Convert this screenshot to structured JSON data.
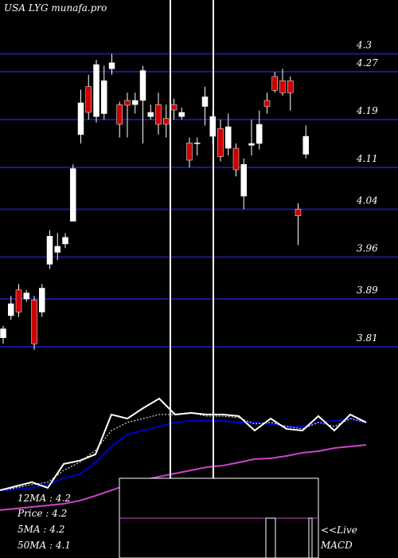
{
  "chart_data": {
    "type": "candlestick",
    "title": "USA LYG munafa.pro",
    "ylim": [
      3.75,
      4.39
    ],
    "yticks": [
      4.3,
      4.27,
      4.19,
      4.11,
      4.04,
      3.96,
      3.89,
      3.81
    ],
    "grid": true,
    "up_color": "#ffffff",
    "down_color": "#cc0000",
    "grid_color": "#1a1a8c",
    "open": [
      3.825,
      3.862,
      3.905,
      3.89,
      3.888,
      3.868,
      3.948,
      3.968,
      3.982,
      4.02,
      4.165,
      4.245,
      4.195,
      4.2,
      4.275,
      4.215,
      4.222,
      4.215,
      4.222,
      4.195,
      4.215,
      4.192,
      4.215,
      4.195,
      4.151,
      4.15,
      4.212,
      4.162,
      4.175,
      4.142,
      4.142,
      4.062,
      4.147,
      4.15,
      4.222,
      4.262,
      4.255,
      4.255,
      4.04,
      4.132
    ],
    "high": [
      3.845,
      3.895,
      3.915,
      3.905,
      3.895,
      3.915,
      4.005,
      4.0,
      4.0,
      4.115,
      4.24,
      4.265,
      4.29,
      4.28,
      4.3,
      4.22,
      4.235,
      4.235,
      4.28,
      4.215,
      4.235,
      4.215,
      4.225,
      4.21,
      4.16,
      4.16,
      4.245,
      4.205,
      4.19,
      4.2,
      4.15,
      4.125,
      4.19,
      4.205,
      4.235,
      4.27,
      4.275,
      4.262,
      4.05,
      4.18
    ],
    "low": [
      3.815,
      3.855,
      3.86,
      3.885,
      3.805,
      3.86,
      3.94,
      3.955,
      3.975,
      4.02,
      4.15,
      4.19,
      4.185,
      4.19,
      4.265,
      4.16,
      4.16,
      4.2,
      4.15,
      4.19,
      4.165,
      4.16,
      4.19,
      4.19,
      4.11,
      4.13,
      4.18,
      4.15,
      4.12,
      4.13,
      4.095,
      4.04,
      4.13,
      4.14,
      4.2,
      4.235,
      4.23,
      4.205,
      3.98,
      4.125
    ],
    "close": [
      3.84,
      3.882,
      3.868,
      3.9,
      3.815,
      3.908,
      3.995,
      3.978,
      3.993,
      4.108,
      4.218,
      4.202,
      4.282,
      4.255,
      4.285,
      4.182,
      4.214,
      4.222,
      4.272,
      4.202,
      4.182,
      4.182,
      4.206,
      4.202,
      4.122,
      4.151,
      4.228,
      4.195,
      4.128,
      4.178,
      4.106,
      4.115,
      4.15,
      4.182,
      4.212,
      4.239,
      4.235,
      4.235,
      4.029,
      4.162
    ],
    "lower_panel": {
      "ylim": [
        0,
        100
      ],
      "series": [
        {
          "color": "#cc44cc",
          "values": [
            27.3,
            28.2,
            29.1,
            30,
            30.9,
            32.7,
            35.5,
            38.6,
            41.8,
            44.5,
            46.4,
            48.2,
            50,
            51.8,
            52.7,
            54.5,
            56.4,
            56.8,
            58.2,
            60,
            60.9,
            62.7,
            63.6,
            64.5
          ]
        },
        {
          "color": "#0000cc",
          "values": [
            38.6,
            39.1,
            40,
            41.8,
            45.5,
            47.7,
            54.5,
            63.6,
            70.5,
            72.7,
            75,
            77.3,
            78.2,
            78.2,
            78.2,
            77.3,
            77.3,
            76.4,
            75,
            75,
            77.3,
            78.2,
            79.5,
            77.3
          ]
        },
        {
          "color": "#ffffff",
          "dashed": true,
          "values": [
            38.6,
            40,
            41.8,
            43.2,
            50,
            54.5,
            61.4,
            72.7,
            77.3,
            79.5,
            81.8,
            81.8,
            82.7,
            80.9,
            80.9,
            80,
            76.4,
            77.3,
            75,
            73.6,
            77.3,
            75,
            79.5,
            77.3
          ]
        },
        {
          "color": "#ffffff",
          "values": [
            38.6,
            40.9,
            43.2,
            40,
            53.6,
            55.5,
            59.1,
            81.8,
            79.5,
            85.5,
            90.9,
            81.8,
            82.7,
            81.8,
            81.8,
            80.9,
            72.7,
            79.5,
            73.6,
            72.7,
            80.9,
            72.7,
            81.8,
            77.3
          ]
        }
      ]
    },
    "info_labels": [
      "12MA : 4.2",
      "Price  : 4.2",
      "5MA : 4.2",
      "50MA : 4.1"
    ],
    "live_label": "<<Live",
    "macd_label": "MACD"
  }
}
